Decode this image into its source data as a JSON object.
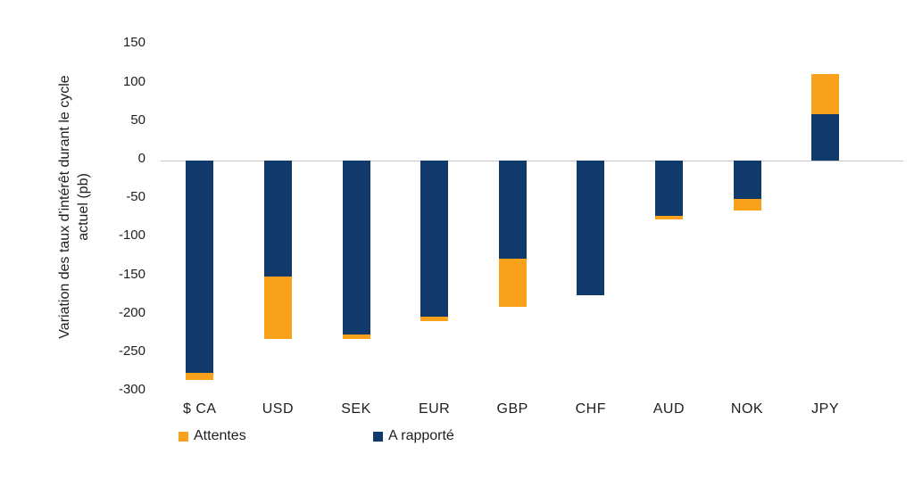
{
  "chart_data": {
    "type": "bar",
    "subtype": "stacked-column",
    "title": "",
    "ylabel": "Variation des taux d'intérêt durant le cycle actuel (pb)",
    "xlabel": "",
    "unit": "pb",
    "categories": [
      "$ CA",
      "USD",
      "SEK",
      "EUR",
      "GBP",
      "CHF",
      "AUD",
      "NOK",
      "JPY"
    ],
    "series": [
      {
        "name": "Attentes",
        "color": "#F9A11B",
        "values": [
          -10,
          -82,
          -5,
          -6,
          -63,
          0,
          -4,
          -15,
          52
        ]
      },
      {
        "name": "A rapporté",
        "color": "#113A6C",
        "values": [
          -275,
          -150,
          -226,
          -202,
          -127,
          -175,
          -72,
          -50,
          60
        ]
      }
    ],
    "stack_note": "A rapporté plotted from zero, Attentes stacked beyond it",
    "yticks": [
      150,
      100,
      50,
      0,
      -50,
      -100,
      -150,
      -200,
      -250,
      -300
    ],
    "ylim": [
      -300,
      150
    ],
    "grid": "zero-line-only",
    "zero_line_color": "#c6c6c6",
    "legend_position": "bottom-left"
  },
  "legend": {
    "attentes_label": "Attentes",
    "rapporte_label": "A rapporté"
  }
}
